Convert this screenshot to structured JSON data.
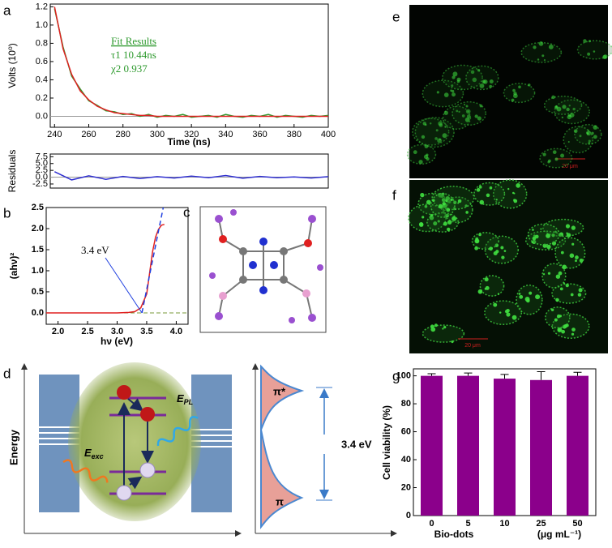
{
  "chart_data": [
    {
      "type": "line",
      "panel": "a",
      "x_label": "Time (ns)",
      "y_label": "Volts (10⁰)",
      "annotations": [
        "Fit Results",
        "τ1  10.44ns",
        "χ2  0.937"
      ],
      "x": [
        240,
        245,
        250,
        255,
        260,
        265,
        270,
        275,
        280,
        285,
        290,
        295,
        300,
        305,
        310,
        315,
        320,
        325,
        330,
        335,
        340,
        345,
        350,
        355,
        360,
        365,
        370,
        375,
        380,
        385,
        390,
        395,
        400
      ],
      "series": [
        {
          "color": "#2e9a2e",
          "values": [
            1.18,
            0.76,
            0.44,
            0.3,
            0.17,
            0.12,
            0.06,
            0.05,
            0.02,
            0.03,
            0.0,
            0.02,
            -0.01,
            0.01,
            0.0,
            0.02,
            -0.01,
            0.0,
            0.01,
            -0.01,
            0.02,
            0.0,
            -0.01,
            0.01,
            0.0,
            0.02,
            -0.01,
            0.01,
            0.0,
            -0.01,
            0.01,
            0.0,
            0.01
          ]
        },
        {
          "color": "#e02020",
          "values": [
            1.2,
            0.74,
            0.46,
            0.28,
            0.18,
            0.11,
            0.07,
            0.04,
            0.03,
            0.02,
            0.01,
            0.01,
            0,
            0,
            0,
            0,
            0,
            0,
            0,
            0,
            0,
            0,
            0,
            0,
            0,
            0,
            0,
            0,
            0,
            0,
            0,
            0,
            0
          ]
        }
      ],
      "hline": 0,
      "xlim": [
        237.5,
        400
      ],
      "ylim": [
        -0.12,
        1.23
      ],
      "xticks": [
        240,
        260,
        280,
        300,
        320,
        340,
        360,
        380,
        400
      ],
      "yticks": [
        {
          "value": 0,
          "label": "0.0"
        },
        0.2,
        0.4,
        0.6,
        0.8,
        {
          "value": 1,
          "label": "1.0"
        },
        1.2
      ]
    },
    {
      "type": "line",
      "y_label": "Residuals",
      "x": [
        240,
        250,
        260,
        270,
        280,
        290,
        300,
        310,
        320,
        330,
        340,
        350,
        360,
        370,
        380,
        390,
        400
      ],
      "series": [
        {
          "color": "#3030d0",
          "values": [
            2.0,
            -1.0,
            0.5,
            -0.8,
            0.3,
            -0.5,
            0.2,
            -0.3,
            0.4,
            -0.2,
            0.6,
            -0.4,
            0.3,
            -0.2,
            0.1,
            -0.3,
            0.2
          ]
        }
      ],
      "hline": 0,
      "xlim": [
        237.5,
        400
      ],
      "ylim": [
        -4,
        8.5
      ],
      "yticks": [
        -2.5,
        {
          "value": 0,
          "label": "0.0"
        },
        2.5,
        {
          "value": 5,
          "label": "5.0"
        },
        7.5
      ]
    },
    {
      "type": "line",
      "panel": "b",
      "x_label": "hν (eV)",
      "y_label": "(ahν)²",
      "annotations": [
        "3.4 eV"
      ],
      "x": [
        1.8,
        2.0,
        2.2,
        2.4,
        2.6,
        2.8,
        3.0,
        3.2,
        3.3,
        3.4,
        3.5,
        3.55,
        3.6,
        3.65,
        3.7,
        3.75,
        3.8
      ],
      "series": [
        {
          "color": "#e02020",
          "values": [
            0,
            0,
            0,
            0,
            0,
            0,
            0,
            0.01,
            0.03,
            0.12,
            0.45,
            0.95,
            1.45,
            1.8,
            1.98,
            2.08,
            2.1
          ]
        },
        {
          "color": "#2040e0",
          "dash": true,
          "x": [
            3.42,
            3.78
          ],
          "values": [
            0,
            2.5
          ]
        }
      ],
      "hline": 0,
      "xlim": [
        1.8,
        4.2
      ],
      "ylim": [
        -0.27,
        2.5
      ],
      "xticks": [
        {
          "value": 2,
          "label": "2.0"
        },
        2.5,
        {
          "value": 3,
          "label": "3.0"
        },
        3.5,
        {
          "value": 4,
          "label": "4.0"
        }
      ],
      "yticks": [
        {
          "value": 0,
          "label": "0.0"
        },
        0.5,
        {
          "value": 1,
          "label": "1.0"
        },
        1.5,
        {
          "value": 2,
          "label": "2.0"
        },
        2.5
      ]
    },
    {
      "type": "bar",
      "panel": "g",
      "x_label": "Bio-dots",
      "x_unit": "(μg mL⁻¹)",
      "y_label": "Cell viability (%)",
      "categories": [
        "0",
        "5",
        "10",
        "25",
        "50"
      ],
      "values": [
        100,
        100,
        98,
        97,
        100
      ],
      "errors": [
        1.5,
        2,
        3,
        6,
        2.5
      ],
      "color": "#8b008b",
      "ylim": [
        0,
        105
      ],
      "yticks": [
        0,
        20,
        40,
        60,
        80,
        100
      ]
    }
  ],
  "panels": {
    "c": {
      "label": "c"
    },
    "d": {
      "label": "d",
      "axis_label": "Energy",
      "exc": {
        "symbol": "E",
        "sub": "exc"
      },
      "pl": {
        "symbol": "E",
        "sub": "PL"
      },
      "pi_star": "π*",
      "pi": "π",
      "gap": "3.4 eV"
    },
    "e": {
      "label": "e",
      "scale": "20 μm"
    },
    "f": {
      "label": "f",
      "scale": "20 μm"
    }
  }
}
